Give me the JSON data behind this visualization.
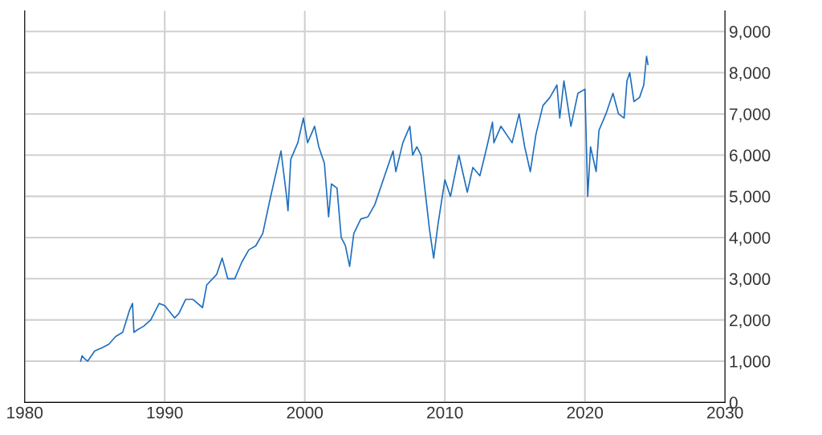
{
  "chart_data": {
    "type": "line",
    "xlim": [
      1980,
      2030
    ],
    "xticks": [
      1980,
      1990,
      2000,
      2010,
      2020,
      2030
    ],
    "ylim": [
      0,
      9500
    ],
    "yticks": [
      {
        "value": 0,
        "label": "0"
      },
      {
        "value": 1000,
        "label": "1,000"
      },
      {
        "value": 2000,
        "label": "2,000"
      },
      {
        "value": 3000,
        "label": "3,000"
      },
      {
        "value": 4000,
        "label": "4,000"
      },
      {
        "value": 5000,
        "label": "5,000"
      },
      {
        "value": 6000,
        "label": "6,000"
      },
      {
        "value": 7000,
        "label": "7,000"
      },
      {
        "value": 8000,
        "label": "8,000"
      },
      {
        "value": 9000,
        "label": "9,000"
      }
    ],
    "grid": true,
    "marker": "none",
    "line_style": "solid",
    "series": [
      {
        "color": "#1f6fbf",
        "x": [
          1984.0,
          1984.1,
          1984.3,
          1984.5,
          1985.0,
          1985.5,
          1986.0,
          1986.5,
          1987.0,
          1987.5,
          1987.7,
          1987.8,
          1988.0,
          1988.5,
          1989.0,
          1989.6,
          1990.0,
          1990.7,
          1991.0,
          1991.5,
          1992.0,
          1992.7,
          1993.0,
          1993.7,
          1994.1,
          1994.5,
          1995.0,
          1995.5,
          1996.0,
          1996.5,
          1997.0,
          1997.5,
          1998.3,
          1998.7,
          1998.8,
          1999.0,
          1999.5,
          1999.9,
          2000.2,
          2000.7,
          2001.0,
          2001.4,
          2001.7,
          2001.9,
          2002.3,
          2002.6,
          2002.9,
          2003.2,
          2003.5,
          2004.0,
          2004.5,
          2005.0,
          2005.7,
          2006.3,
          2006.5,
          2007.0,
          2007.5,
          2007.7,
          2008.0,
          2008.3,
          2008.7,
          2008.9,
          2009.2,
          2009.5,
          2010.0,
          2010.4,
          2011.0,
          2011.6,
          2012.0,
          2012.5,
          2013.0,
          2013.4,
          2013.5,
          2014.0,
          2014.8,
          2015.3,
          2015.7,
          2016.1,
          2016.5,
          2017.0,
          2017.5,
          2018.0,
          2018.2,
          2018.5,
          2019.0,
          2019.5,
          2020.0,
          2020.2,
          2020.4,
          2020.8,
          2021.0,
          2021.5,
          2022.0,
          2022.4,
          2022.8,
          2023.0,
          2023.2,
          2023.5,
          2023.9,
          2024.2,
          2024.4,
          2024.5
        ],
        "values": [
          1000,
          1130,
          1050,
          1000,
          1250,
          1320,
          1410,
          1600,
          1700,
          2250,
          2400,
          1700,
          1750,
          1850,
          2000,
          2400,
          2350,
          2050,
          2150,
          2500,
          2500,
          2300,
          2850,
          3100,
          3500,
          3000,
          3000,
          3400,
          3700,
          3800,
          4100,
          4900,
          6100,
          5000,
          4650,
          5900,
          6300,
          6900,
          6300,
          6700,
          6200,
          5800,
          4500,
          5300,
          5200,
          4000,
          3800,
          3300,
          4100,
          4450,
          4500,
          4800,
          5500,
          6100,
          5600,
          6300,
          6700,
          6000,
          6200,
          6000,
          4800,
          4200,
          3500,
          4300,
          5400,
          5000,
          6000,
          5100,
          5700,
          5500,
          6200,
          6800,
          6300,
          6700,
          6300,
          7000,
          6200,
          5600,
          6500,
          7200,
          7400,
          7700,
          6900,
          7800,
          6700,
          7500,
          7600,
          5000,
          6200,
          5600,
          6600,
          7000,
          7500,
          7000,
          6900,
          7800,
          8000,
          7300,
          7400,
          7700,
          8400,
          8200
        ]
      }
    ]
  }
}
